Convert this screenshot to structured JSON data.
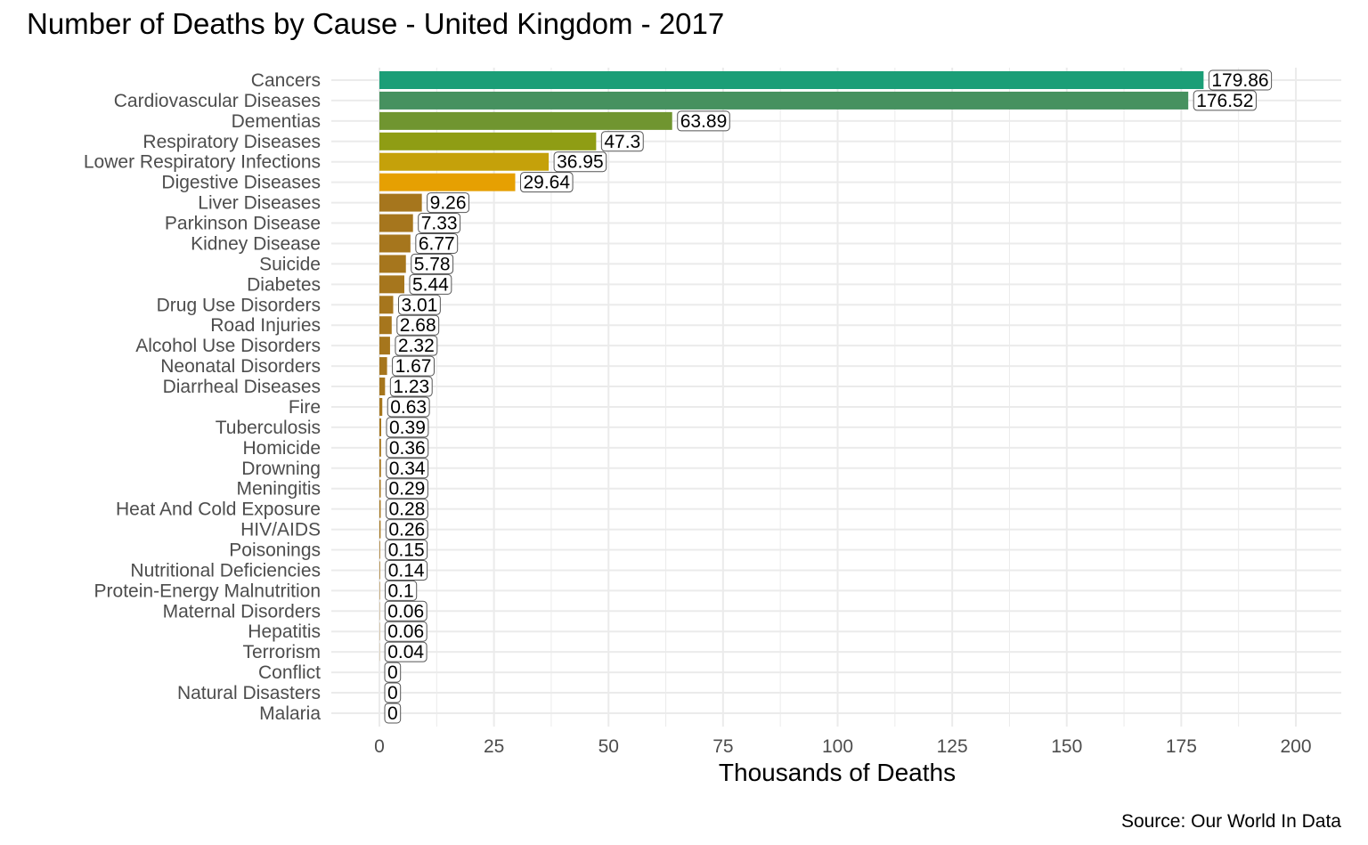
{
  "chart_data": {
    "type": "bar",
    "orientation": "horizontal",
    "title": "Number of Deaths by Cause - United Kingdom - 2017",
    "xlabel": "Thousands of Deaths",
    "ylabel": "",
    "caption": "Source: Our World In Data",
    "xlim": [
      0,
      200
    ],
    "xticks": [
      0,
      25,
      50,
      75,
      100,
      125,
      150,
      175,
      200
    ],
    "grid": true,
    "legend": "none",
    "categories": [
      "Cancers",
      "Cardiovascular Diseases",
      "Dementias",
      "Respiratory Diseases",
      "Lower Respiratory Infections",
      "Digestive Diseases",
      "Liver Diseases",
      "Parkinson Disease",
      "Kidney Disease",
      "Suicide",
      "Diabetes",
      "Drug Use Disorders",
      "Road Injuries",
      "Alcohol Use Disorders",
      "Neonatal Disorders",
      "Diarrheal Diseases",
      "Fire",
      "Tuberculosis",
      "Homicide",
      "Drowning",
      "Meningitis",
      "Heat And Cold Exposure",
      "HIV/AIDS",
      "Poisonings",
      "Nutritional Deficiencies",
      "Protein-Energy Malnutrition",
      "Maternal Disorders",
      "Hepatitis",
      "Terrorism",
      "Conflict",
      "Natural Disasters",
      "Malaria"
    ],
    "values": [
      179.86,
      176.52,
      63.89,
      47.3,
      36.95,
      29.64,
      9.26,
      7.33,
      6.77,
      5.78,
      5.44,
      3.01,
      2.68,
      2.32,
      1.67,
      1.23,
      0.63,
      0.39,
      0.36,
      0.34,
      0.29,
      0.28,
      0.26,
      0.15,
      0.14,
      0.1,
      0.06,
      0.06,
      0.04,
      0,
      0,
      0
    ],
    "value_labels": [
      "179.86",
      "176.52",
      "63.89",
      "47.3",
      "36.95",
      "29.64",
      "9.26",
      "7.33",
      "6.77",
      "5.78",
      "5.44",
      "3.01",
      "2.68",
      "2.32",
      "1.67",
      "1.23",
      "0.63",
      "0.39",
      "0.36",
      "0.34",
      "0.29",
      "0.28",
      "0.26",
      "0.15",
      "0.14",
      "0.1",
      "0.06",
      "0.06",
      "0.04",
      "0",
      "0",
      "0"
    ],
    "colors": [
      "#1b9e77",
      "#46915f",
      "#709530",
      "#8f9d14",
      "#c5a10a",
      "#e6a002",
      "#a6761d",
      "#a6761d",
      "#a6761d",
      "#a6761d",
      "#a6761d",
      "#a6761d",
      "#a6761d",
      "#a6761d",
      "#a6761d",
      "#a6761d",
      "#a6761d",
      "#a6761d",
      "#a6761d",
      "#a6761d",
      "#a6761d",
      "#a6761d",
      "#a6761d",
      "#a6761d",
      "#a6761d",
      "#a6761d",
      "#a6761d",
      "#a6761d",
      "#a6761d",
      "#a6761d",
      "#a6761d",
      "#a6761d"
    ]
  }
}
